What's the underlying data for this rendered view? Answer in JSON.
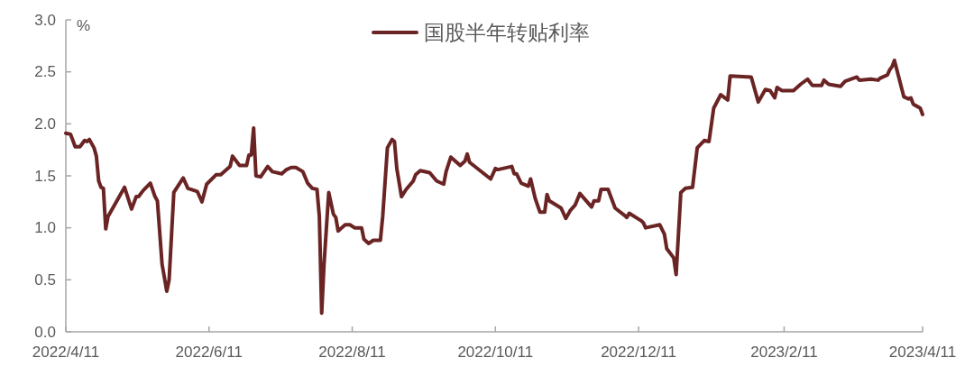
{
  "chart_data": {
    "type": "line",
    "ylabel": "%",
    "legend": "top",
    "grid": false,
    "marker": "none",
    "line_style": "solid",
    "xlim": [
      "2022-04-11",
      "2023-04-11"
    ],
    "xticks": [
      {
        "value": "2022-04-11",
        "label": "2022/4/11"
      },
      {
        "value": "2022-06-11",
        "label": "2022/6/11"
      },
      {
        "value": "2022-08-11",
        "label": "2022/8/11"
      },
      {
        "value": "2022-10-11",
        "label": "2022/10/11"
      },
      {
        "value": "2022-12-11",
        "label": "2022/12/11"
      },
      {
        "value": "2023-02-11",
        "label": "2023/2/11"
      },
      {
        "value": "2023-04-11",
        "label": "2023/4/11"
      }
    ],
    "ylim": [
      0,
      3
    ],
    "yticks": [
      {
        "value": 0,
        "label": "0.0"
      },
      0.5,
      {
        "value": 1,
        "label": "1.0"
      },
      1.5,
      {
        "value": 2,
        "label": "2.0"
      },
      2.5,
      {
        "value": 3,
        "label": "3.0"
      }
    ],
    "series": [
      {
        "name": "国股半年转贴利率",
        "color": "#6b2424",
        "x": [
          "2022-04-11",
          "2022-04-13",
          "2022-04-15",
          "2022-04-17",
          "2022-04-19",
          "2022-04-20",
          "2022-04-21",
          "2022-04-23",
          "2022-04-24",
          "2022-04-25",
          "2022-04-26",
          "2022-04-27",
          "2022-04-28",
          "2022-04-29",
          "2022-05-06",
          "2022-05-09",
          "2022-05-11",
          "2022-05-12",
          "2022-05-14",
          "2022-05-17",
          "2022-05-19",
          "2022-05-20",
          "2022-05-22",
          "2022-05-24",
          "2022-05-25",
          "2022-05-27",
          "2022-05-29",
          "2022-05-31",
          "2022-06-02",
          "2022-06-06",
          "2022-06-08",
          "2022-06-10",
          "2022-06-14",
          "2022-06-16",
          "2022-06-20",
          "2022-06-21",
          "2022-06-24",
          "2022-06-27",
          "2022-06-28",
          "2022-06-29",
          "2022-06-30",
          "2022-07-01",
          "2022-07-03",
          "2022-07-06",
          "2022-07-08",
          "2022-07-12",
          "2022-07-14",
          "2022-07-16",
          "2022-07-18",
          "2022-07-21",
          "2022-07-23",
          "2022-07-25",
          "2022-07-27",
          "2022-07-28",
          "2022-07-29",
          "2022-07-30",
          "2022-08-01",
          "2022-08-03",
          "2022-08-04",
          "2022-08-05",
          "2022-08-08",
          "2022-08-10",
          "2022-08-12",
          "2022-08-15",
          "2022-08-16",
          "2022-08-18",
          "2022-08-20",
          "2022-08-23",
          "2022-08-24",
          "2022-08-26",
          "2022-08-28",
          "2022-08-29",
          "2022-08-30",
          "2022-09-01",
          "2022-09-03",
          "2022-09-06",
          "2022-09-07",
          "2022-09-09",
          "2022-09-13",
          "2022-09-16",
          "2022-09-19",
          "2022-09-20",
          "2022-09-22",
          "2022-09-26",
          "2022-09-28",
          "2022-09-29",
          "2022-09-30",
          "2022-10-09",
          "2022-10-11",
          "2022-10-12",
          "2022-10-18",
          "2022-10-19",
          "2022-10-20",
          "2022-10-22",
          "2022-10-25",
          "2022-10-26",
          "2022-10-28",
          "2022-10-30",
          "2022-11-01",
          "2022-11-02",
          "2022-11-03",
          "2022-11-08",
          "2022-11-10",
          "2022-11-12",
          "2022-11-14",
          "2022-11-16",
          "2022-11-21",
          "2022-11-22",
          "2022-11-24",
          "2022-11-25",
          "2022-11-28",
          "2022-12-01",
          "2022-12-05",
          "2022-12-06",
          "2022-12-07",
          "2022-12-12",
          "2022-12-13",
          "2022-12-14",
          "2022-12-20",
          "2022-12-22",
          "2022-12-23",
          "2022-12-26",
          "2022-12-27",
          "2022-12-29",
          "2022-12-31",
          "2023-01-03",
          "2023-01-05",
          "2023-01-08",
          "2023-01-10",
          "2023-01-12",
          "2023-01-15",
          "2023-01-18",
          "2023-01-19",
          "2023-01-28",
          "2023-01-31",
          "2023-02-03",
          "2023-02-05",
          "2023-02-07",
          "2023-02-08",
          "2023-02-10",
          "2023-02-15",
          "2023-02-18",
          "2023-02-21",
          "2023-02-23",
          "2023-02-27",
          "2023-02-28",
          "2023-03-02",
          "2023-03-07",
          "2023-03-09",
          "2023-03-14",
          "2023-03-15",
          "2023-03-20",
          "2023-03-23",
          "2023-03-24",
          "2023-03-27",
          "2023-03-28",
          "2023-03-29",
          "2023-03-30",
          "2023-04-03",
          "2023-04-05",
          "2023-04-06",
          "2023-04-07",
          "2023-04-10",
          "2023-04-11"
        ],
        "values": [
          1.91,
          1.9,
          1.78,
          1.78,
          1.84,
          1.83,
          1.85,
          1.77,
          1.69,
          1.45,
          1.39,
          1.38,
          0.99,
          1.11,
          1.39,
          1.18,
          1.3,
          1.3,
          1.36,
          1.43,
          1.3,
          1.26,
          0.65,
          0.39,
          0.5,
          1.34,
          1.41,
          1.48,
          1.38,
          1.35,
          1.25,
          1.42,
          1.51,
          1.51,
          1.59,
          1.69,
          1.6,
          1.6,
          1.7,
          1.7,
          1.96,
          1.5,
          1.49,
          1.59,
          1.54,
          1.52,
          1.56,
          1.58,
          1.58,
          1.54,
          1.43,
          1.38,
          1.37,
          1.11,
          0.18,
          0.65,
          1.34,
          1.13,
          1.1,
          0.97,
          1.03,
          1.03,
          1.0,
          1.0,
          0.89,
          0.85,
          0.88,
          0.88,
          1.11,
          1.77,
          1.85,
          1.83,
          1.57,
          1.3,
          1.37,
          1.45,
          1.51,
          1.55,
          1.53,
          1.45,
          1.42,
          1.54,
          1.68,
          1.6,
          1.64,
          1.71,
          1.63,
          1.47,
          1.57,
          1.56,
          1.59,
          1.52,
          1.52,
          1.43,
          1.4,
          1.47,
          1.28,
          1.15,
          1.15,
          1.32,
          1.26,
          1.19,
          1.09,
          1.17,
          1.22,
          1.33,
          1.2,
          1.26,
          1.26,
          1.37,
          1.37,
          1.19,
          1.12,
          1.1,
          1.14,
          1.07,
          1.05,
          1.0,
          1.03,
          0.94,
          0.8,
          0.71,
          0.55,
          1.34,
          1.38,
          1.39,
          1.77,
          1.84,
          1.83,
          2.15,
          2.28,
          2.23,
          2.46,
          2.45,
          2.21,
          2.33,
          2.32,
          2.25,
          2.35,
          2.32,
          2.32,
          2.38,
          2.43,
          2.37,
          2.37,
          2.42,
          2.38,
          2.36,
          2.41,
          2.45,
          2.42,
          2.43,
          2.42,
          2.44,
          2.47,
          2.52,
          2.55,
          2.61,
          2.26,
          2.24,
          2.25,
          2.19,
          2.15,
          2.09
        ]
      }
    ]
  }
}
